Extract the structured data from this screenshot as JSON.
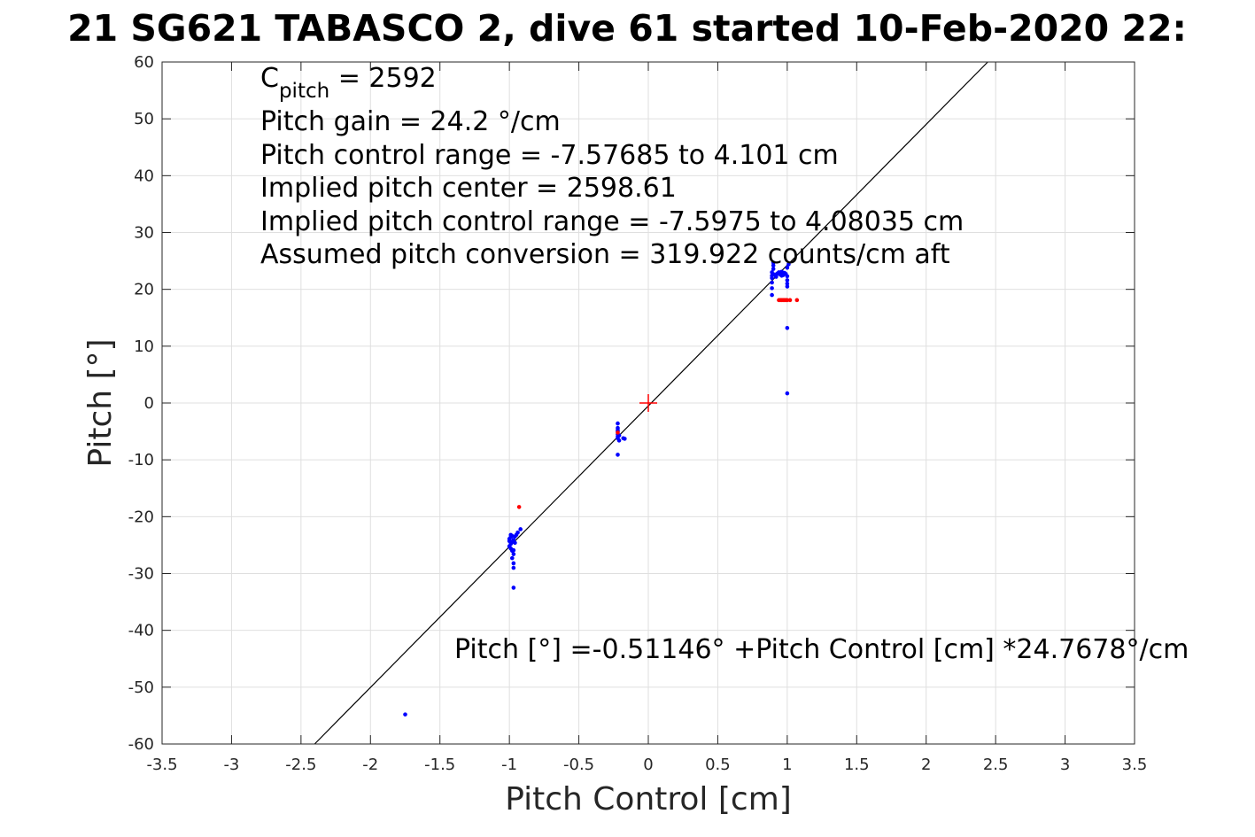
{
  "chart_data": {
    "type": "scatter",
    "title": "21 SG621 TABASCO 2, dive 61 started 10-Feb-2020 22:",
    "xlabel": "Pitch Control [cm]",
    "ylabel": "Pitch [°]",
    "xlim": [
      -3.5,
      3.5
    ],
    "ylim": [
      -60,
      60
    ],
    "xticks": [
      -3.5,
      -3,
      -2.5,
      -2,
      -1.5,
      -1,
      -0.5,
      0,
      0.5,
      1,
      1.5,
      2,
      2.5,
      3,
      3.5
    ],
    "xtick_labels": [
      "-3.5",
      "-3",
      "-2.5",
      "-2",
      "-1.5",
      "-1",
      "-0.5",
      "0",
      "0.5",
      "1",
      "1.5",
      "2",
      "2.5",
      "3",
      "3.5"
    ],
    "yticks": [
      -60,
      -50,
      -40,
      -30,
      -20,
      -10,
      0,
      10,
      20,
      30,
      40,
      50,
      60
    ],
    "ytick_labels": [
      "-60",
      "-50",
      "-40",
      "-30",
      "-20",
      "-10",
      "0",
      "10",
      "20",
      "30",
      "40",
      "50",
      "60"
    ],
    "grid": true,
    "colors": {
      "used_points": "#0000ff",
      "excluded_points": "#ff0000",
      "fit_line": "#000000",
      "center_marker": "#ff0000"
    },
    "fit_line": {
      "intercept": -0.51146,
      "slope": 24.7678
    },
    "center_marker": {
      "x": 0,
      "y": 0
    },
    "annotations": {
      "cpitch_prefix": "C",
      "cpitch_sub": "pitch",
      "cpitch_value": " = 2592",
      "lines": [
        "Pitch gain = 24.2 °/cm",
        "Pitch control range = -7.57685 to 4.101 cm",
        "Implied pitch center = 2598.61",
        "Implied pitch control range = -7.5975 to 4.08035 cm",
        "Assumed pitch conversion = 319.922 counts/cm aft"
      ],
      "fit_equation": "Pitch [°] =-0.51146°  +Pitch Control [cm] *24.7678°/cm"
    },
    "series": [
      {
        "color": "blue",
        "points": [
          [
            -1.75,
            -54.8
          ],
          [
            -0.97,
            -32.5
          ],
          [
            -0.97,
            -29.0
          ],
          [
            -0.97,
            -28.2
          ],
          [
            -0.98,
            -27.3
          ],
          [
            -0.97,
            -26.6
          ],
          [
            -0.98,
            -26.0
          ],
          [
            -0.99,
            -25.6
          ],
          [
            -1.0,
            -25.2
          ],
          [
            -0.99,
            -24.8
          ],
          [
            -0.98,
            -24.4
          ],
          [
            -0.97,
            -24.1
          ],
          [
            -1.0,
            -23.9
          ],
          [
            -0.99,
            -23.6
          ],
          [
            -0.98,
            -23.4
          ],
          [
            -0.96,
            -23.5
          ],
          [
            -0.95,
            -23.2
          ],
          [
            -0.94,
            -22.8
          ],
          [
            -0.92,
            -22.2
          ],
          [
            -0.96,
            -24.6
          ],
          [
            -0.97,
            -25.9
          ],
          [
            -1.0,
            -24.3
          ],
          [
            -0.99,
            -23.2
          ],
          [
            -0.22,
            -3.6
          ],
          [
            -0.22,
            -4.4
          ],
          [
            -0.22,
            -5.0
          ],
          [
            -0.22,
            -5.5
          ],
          [
            -0.22,
            -5.9
          ],
          [
            -0.22,
            -6.2
          ],
          [
            -0.21,
            -6.6
          ],
          [
            -0.22,
            -4.8
          ],
          [
            -0.18,
            -6.2
          ],
          [
            -0.17,
            -6.3
          ],
          [
            -0.22,
            -9.1
          ],
          [
            -0.21,
            -5.7
          ],
          [
            0.89,
            19.0
          ],
          [
            0.89,
            20.2
          ],
          [
            0.89,
            21.2
          ],
          [
            0.89,
            22.0
          ],
          [
            0.89,
            22.4
          ],
          [
            0.89,
            23.0
          ],
          [
            0.9,
            23.6
          ],
          [
            0.9,
            24.2
          ],
          [
            0.9,
            24.7
          ],
          [
            0.91,
            22.6
          ],
          [
            0.92,
            22.4
          ],
          [
            0.93,
            22.8
          ],
          [
            0.94,
            23.0
          ],
          [
            0.95,
            22.6
          ],
          [
            0.96,
            23.1
          ],
          [
            0.97,
            22.5
          ],
          [
            0.98,
            22.9
          ],
          [
            0.99,
            22.7
          ],
          [
            1.0,
            22.3
          ],
          [
            1.0,
            21.6
          ],
          [
            1.0,
            21.0
          ],
          [
            1.0,
            20.5
          ],
          [
            1.0,
            23.8
          ],
          [
            1.01,
            24.4
          ],
          [
            1.0,
            13.2
          ],
          [
            1.0,
            1.7
          ],
          [
            0.92,
            22.2
          ],
          [
            0.96,
            22.4
          ]
        ]
      },
      {
        "color": "red",
        "points": [
          [
            -0.93,
            -18.3
          ],
          [
            0.94,
            18.1
          ],
          [
            0.95,
            18.1
          ],
          [
            0.96,
            18.1
          ],
          [
            0.97,
            18.1
          ],
          [
            0.98,
            18.1
          ],
          [
            0.99,
            18.1
          ],
          [
            1.0,
            18.1
          ],
          [
            1.02,
            18.1
          ],
          [
            1.07,
            18.1
          ],
          [
            -0.22,
            -5.2
          ]
        ]
      }
    ]
  }
}
